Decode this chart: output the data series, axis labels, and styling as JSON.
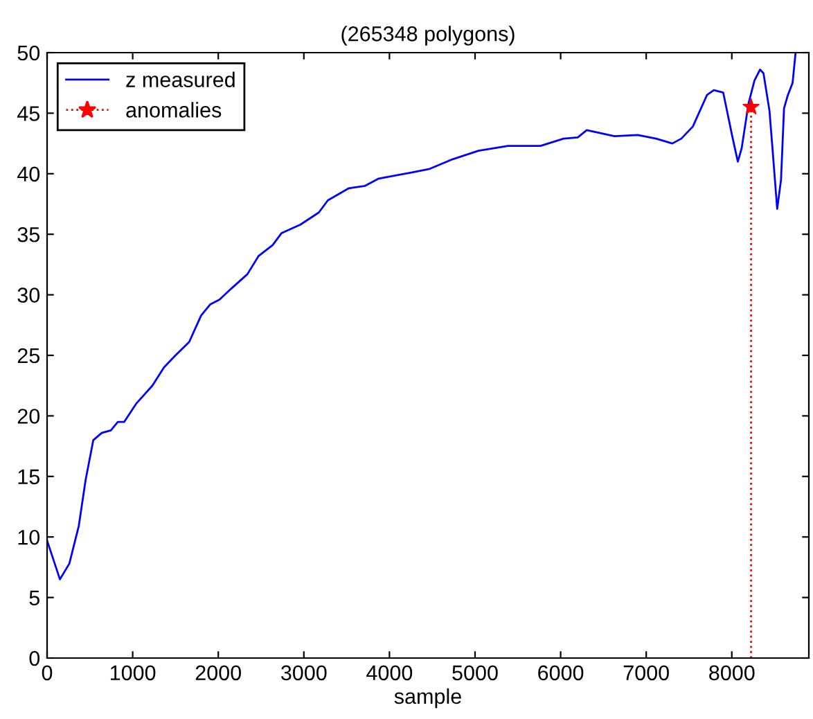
{
  "chart_data": {
    "type": "line",
    "title": "(265348 polygons)",
    "xlabel": "sample",
    "xlim": [
      0,
      8900
    ],
    "ylim": [
      0,
      50
    ],
    "xticks": [
      0,
      1000,
      2000,
      3000,
      4000,
      5000,
      6000,
      7000,
      8000
    ],
    "yticks": [
      0,
      5,
      10,
      15,
      20,
      25,
      30,
      35,
      40,
      45,
      50
    ],
    "grid": false,
    "legend": "top left",
    "series": [
      {
        "name": "z measured",
        "color": "#0000ff",
        "line_style": "solid",
        "marker": "none",
        "x": [
          0,
          150,
          260,
          370,
          450,
          540,
          640,
          745,
          826,
          900,
          1040,
          1230,
          1365,
          1500,
          1660,
          1800,
          1905,
          2015,
          2150,
          2340,
          2470,
          2635,
          2740,
          2960,
          3175,
          3280,
          3525,
          3715,
          3875,
          4255,
          4470,
          4740,
          5040,
          5385,
          5765,
          6035,
          6200,
          6305,
          6630,
          6900,
          7115,
          7305,
          7410,
          7545,
          7710,
          7790,
          7900,
          8005,
          8070,
          8115,
          8195,
          8265,
          8330,
          8370,
          8440,
          8475,
          8530,
          8575,
          8610,
          8655,
          8710,
          8745
        ],
        "values": [
          9.7,
          6.5,
          7.8,
          10.9,
          14.7,
          18,
          18.6,
          18.8,
          19.5,
          19.5,
          21,
          22.5,
          24,
          25,
          26.1,
          28.3,
          29.2,
          29.6,
          30.5,
          31.7,
          33.2,
          34.1,
          35.1,
          35.8,
          36.8,
          37.8,
          38.8,
          39,
          39.6,
          40.1,
          40.4,
          41.2,
          41.9,
          42.3,
          42.3,
          42.9,
          43,
          43.6,
          43.1,
          43.2,
          42.9,
          42.5,
          42.9,
          43.9,
          46.5,
          46.9,
          46.7,
          43.1,
          41,
          42.1,
          45.8,
          47.7,
          48.6,
          48.3,
          45.2,
          42.1,
          37.1,
          39.5,
          45.4,
          46.5,
          47.5,
          50
        ]
      },
      {
        "name": "anomalies",
        "type": "lollipop",
        "color": "#ff0000",
        "line_style": "dotted",
        "marker": "star",
        "x": [
          8225
        ],
        "values": [
          45.5
        ]
      }
    ]
  }
}
